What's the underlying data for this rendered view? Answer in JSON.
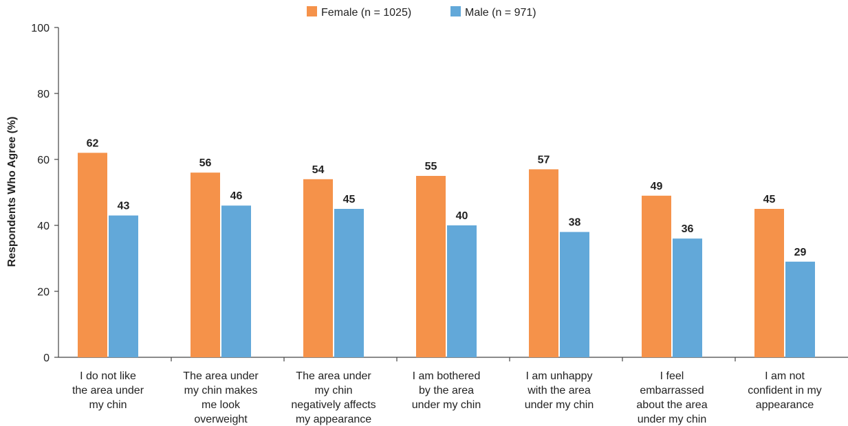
{
  "chart_data": {
    "type": "bar",
    "ylabel": "Respondents Who Agree (%)",
    "xlabel": "",
    "ylim": [
      0,
      100
    ],
    "yticks": [
      0,
      20,
      40,
      60,
      80,
      100
    ],
    "categories": [
      [
        "I do not like",
        "the area under",
        "my chin"
      ],
      [
        "The area under",
        "my chin makes",
        "me look",
        "overweight"
      ],
      [
        "The area under",
        "my chin",
        "negatively affects",
        "my appearance"
      ],
      [
        "I am bothered",
        "by the area",
        "under my chin"
      ],
      [
        "I am unhappy",
        "with the area",
        "under my chin"
      ],
      [
        "I feel",
        "embarrassed",
        "about the area",
        "under my chin"
      ],
      [
        "I am not",
        "confident in my",
        "appearance"
      ]
    ],
    "series": [
      {
        "name": "Female (n = 1025)",
        "color": "#F5924A",
        "values": [
          62,
          56,
          54,
          55,
          57,
          49,
          45
        ]
      },
      {
        "name": "Male (n = 971)",
        "color": "#62A8D9",
        "values": [
          43,
          46,
          45,
          40,
          38,
          36,
          29
        ]
      }
    ],
    "legend_position": "top-center",
    "grid": false
  }
}
